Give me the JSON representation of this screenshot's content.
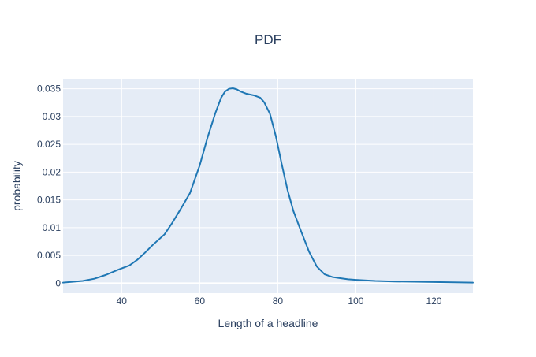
{
  "chart_data": {
    "type": "line",
    "title": "PDF",
    "xlabel": "Length of a headline",
    "ylabel": "probability",
    "xlim": [
      25,
      130
    ],
    "ylim": [
      -0.0018,
      0.0368
    ],
    "x_ticks": [
      40,
      60,
      80,
      100,
      120
    ],
    "x_tick_labels": [
      "40",
      "60",
      "80",
      "100",
      "120"
    ],
    "y_ticks": [
      0,
      0.005,
      0.01,
      0.015,
      0.02,
      0.025,
      0.03,
      0.035
    ],
    "y_tick_labels": [
      "0",
      "0.005",
      "0.01",
      "0.015",
      "0.02",
      "0.025",
      "0.03",
      "0.035"
    ],
    "grid": true,
    "colors": {
      "line": "#1f77b4",
      "plot_bg": "#e5ecf6",
      "grid": "#ffffff",
      "text": "#2a3f5f"
    },
    "series": [
      {
        "x": [
          25,
          30,
          33,
          36,
          39,
          42,
          44,
          46,
          48,
          51,
          53,
          55,
          57.5,
          60,
          62,
          64,
          65.5,
          66.5,
          67.5,
          68.5,
          69.5,
          70.5,
          72,
          74,
          75.5,
          76.5,
          78,
          79.5,
          81,
          82.5,
          84,
          86,
          88,
          90,
          92,
          94,
          96,
          98,
          100,
          105,
          110,
          120,
          130
        ],
        "y": [
          0.0001,
          0.0004,
          0.0008,
          0.0015,
          0.0024,
          0.0032,
          0.0042,
          0.0055,
          0.0069,
          0.0088,
          0.0109,
          0.0132,
          0.0162,
          0.0212,
          0.0262,
          0.0306,
          0.0334,
          0.0345,
          0.035,
          0.0351,
          0.0349,
          0.0345,
          0.0341,
          0.0338,
          0.0334,
          0.0326,
          0.0305,
          0.0265,
          0.0215,
          0.0168,
          0.013,
          0.0093,
          0.0057,
          0.003,
          0.0016,
          0.0011,
          0.0009,
          0.0007,
          0.0006,
          0.0004,
          0.0003,
          0.0002,
          0.0001
        ]
      }
    ]
  }
}
